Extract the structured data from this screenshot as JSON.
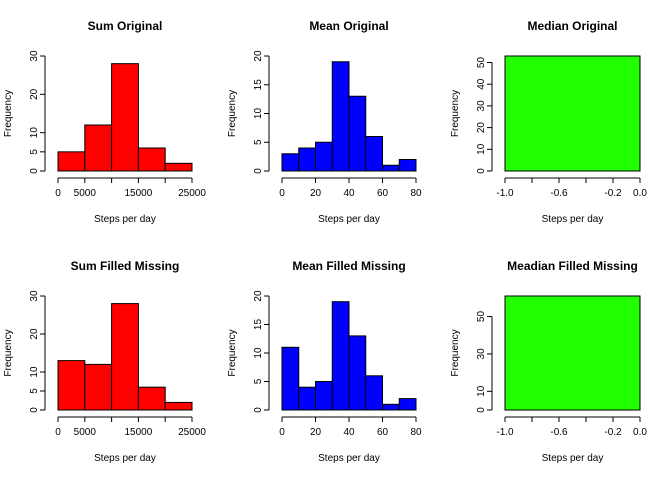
{
  "chart_data": [
    {
      "type": "bar",
      "title": "Sum Original",
      "xlabel": "Steps per day",
      "ylabel": "Frequency",
      "color": "#ff0000",
      "xlim": [
        0,
        25000
      ],
      "ylim": [
        0,
        30
      ],
      "bins": [
        [
          0,
          5000
        ],
        [
          5000,
          10000
        ],
        [
          10000,
          15000
        ],
        [
          15000,
          20000
        ],
        [
          20000,
          25000
        ]
      ],
      "values": [
        5,
        12,
        28,
        6,
        2
      ],
      "xticks": [
        0,
        5000,
        15000,
        25000
      ],
      "xtick_labels": [
        "0",
        "5000",
        "15000",
        "25000"
      ],
      "xtick_marks": [
        0,
        5000,
        10000,
        15000,
        20000,
        25000
      ],
      "yticks": [
        0,
        5,
        10,
        20,
        30
      ],
      "ytick_labels": [
        "0",
        "5",
        "10",
        "20",
        "30"
      ]
    },
    {
      "type": "bar",
      "title": "Mean Original",
      "xlabel": "Steps per day",
      "ylabel": "Frequency",
      "color": "#0000ff",
      "xlim": [
        0,
        80
      ],
      "ylim": [
        0,
        20
      ],
      "bins": [
        [
          0,
          10
        ],
        [
          10,
          20
        ],
        [
          20,
          30
        ],
        [
          30,
          40
        ],
        [
          40,
          50
        ],
        [
          50,
          60
        ],
        [
          60,
          70
        ],
        [
          70,
          80
        ]
      ],
      "values": [
        3,
        4,
        5,
        19,
        13,
        6,
        1,
        2
      ],
      "xticks": [
        0,
        20,
        40,
        60,
        80
      ],
      "xtick_labels": [
        "0",
        "20",
        "40",
        "60",
        "80"
      ],
      "xtick_marks": [
        0,
        20,
        40,
        60,
        80
      ],
      "yticks": [
        0,
        5,
        10,
        15,
        20
      ],
      "ytick_labels": [
        "0",
        "5",
        "10",
        "15",
        "20"
      ]
    },
    {
      "type": "bar",
      "title": "Median Original",
      "xlabel": "Steps per day",
      "ylabel": "Frequency",
      "color": "#22ff00",
      "xlim": [
        -1.0,
        0.0
      ],
      "ylim": [
        0,
        53
      ],
      "bins": [
        [
          -1.0,
          0.0
        ]
      ],
      "values": [
        53
      ],
      "xticks": [
        -1.0,
        -0.6,
        -0.2,
        0.0
      ],
      "xtick_labels": [
        "-1.0",
        "-0.6",
        "-0.2",
        "0.0"
      ],
      "xtick_marks": [
        -1.0,
        -0.8,
        -0.6,
        -0.4,
        -0.2,
        0.0
      ],
      "yticks": [
        0,
        10,
        20,
        30,
        40,
        50
      ],
      "ytick_labels": [
        "0",
        "10",
        "20",
        "30",
        "40",
        "50"
      ]
    },
    {
      "type": "bar",
      "title": "Sum Filled Missing",
      "xlabel": "Steps per day",
      "ylabel": "Frequency",
      "color": "#ff0000",
      "xlim": [
        0,
        25000
      ],
      "ylim": [
        0,
        30
      ],
      "bins": [
        [
          0,
          5000
        ],
        [
          5000,
          10000
        ],
        [
          10000,
          15000
        ],
        [
          15000,
          20000
        ],
        [
          20000,
          25000
        ]
      ],
      "values": [
        13,
        12,
        28,
        6,
        2
      ],
      "xticks": [
        0,
        5000,
        15000,
        25000
      ],
      "xtick_labels": [
        "0",
        "5000",
        "15000",
        "25000"
      ],
      "xtick_marks": [
        0,
        5000,
        10000,
        15000,
        20000,
        25000
      ],
      "yticks": [
        0,
        5,
        10,
        20,
        30
      ],
      "ytick_labels": [
        "0",
        "5",
        "10",
        "20",
        "30"
      ]
    },
    {
      "type": "bar",
      "title": "Mean Filled Missing",
      "xlabel": "Steps per day",
      "ylabel": "Frequency",
      "color": "#0000ff",
      "xlim": [
        0,
        80
      ],
      "ylim": [
        0,
        20
      ],
      "bins": [
        [
          0,
          10
        ],
        [
          10,
          20
        ],
        [
          20,
          30
        ],
        [
          30,
          40
        ],
        [
          40,
          50
        ],
        [
          50,
          60
        ],
        [
          60,
          70
        ],
        [
          70,
          80
        ]
      ],
      "values": [
        11,
        4,
        5,
        19,
        13,
        6,
        1,
        2
      ],
      "xticks": [
        0,
        20,
        40,
        60,
        80
      ],
      "xtick_labels": [
        "0",
        "20",
        "40",
        "60",
        "80"
      ],
      "xtick_marks": [
        0,
        20,
        40,
        60,
        80
      ],
      "yticks": [
        0,
        5,
        10,
        15,
        20
      ],
      "ytick_labels": [
        "0",
        "5",
        "10",
        "15",
        "20"
      ]
    },
    {
      "type": "bar",
      "title": "Meadian Filled Missing",
      "xlabel": "Steps per day",
      "ylabel": "Frequency",
      "color": "#22ff00",
      "xlim": [
        -1.0,
        0.0
      ],
      "ylim": [
        0,
        61
      ],
      "bins": [
        [
          -1.0,
          0.0
        ]
      ],
      "values": [
        61
      ],
      "xticks": [
        -1.0,
        -0.6,
        -0.2,
        0.0
      ],
      "xtick_labels": [
        "-1.0",
        "-0.6",
        "-0.2",
        "0.0"
      ],
      "xtick_marks": [
        -1.0,
        -0.8,
        -0.6,
        -0.4,
        -0.2,
        0.0
      ],
      "yticks": [
        0,
        10,
        30,
        50
      ],
      "ytick_labels": [
        "0",
        "10",
        "30",
        "50"
      ]
    }
  ]
}
